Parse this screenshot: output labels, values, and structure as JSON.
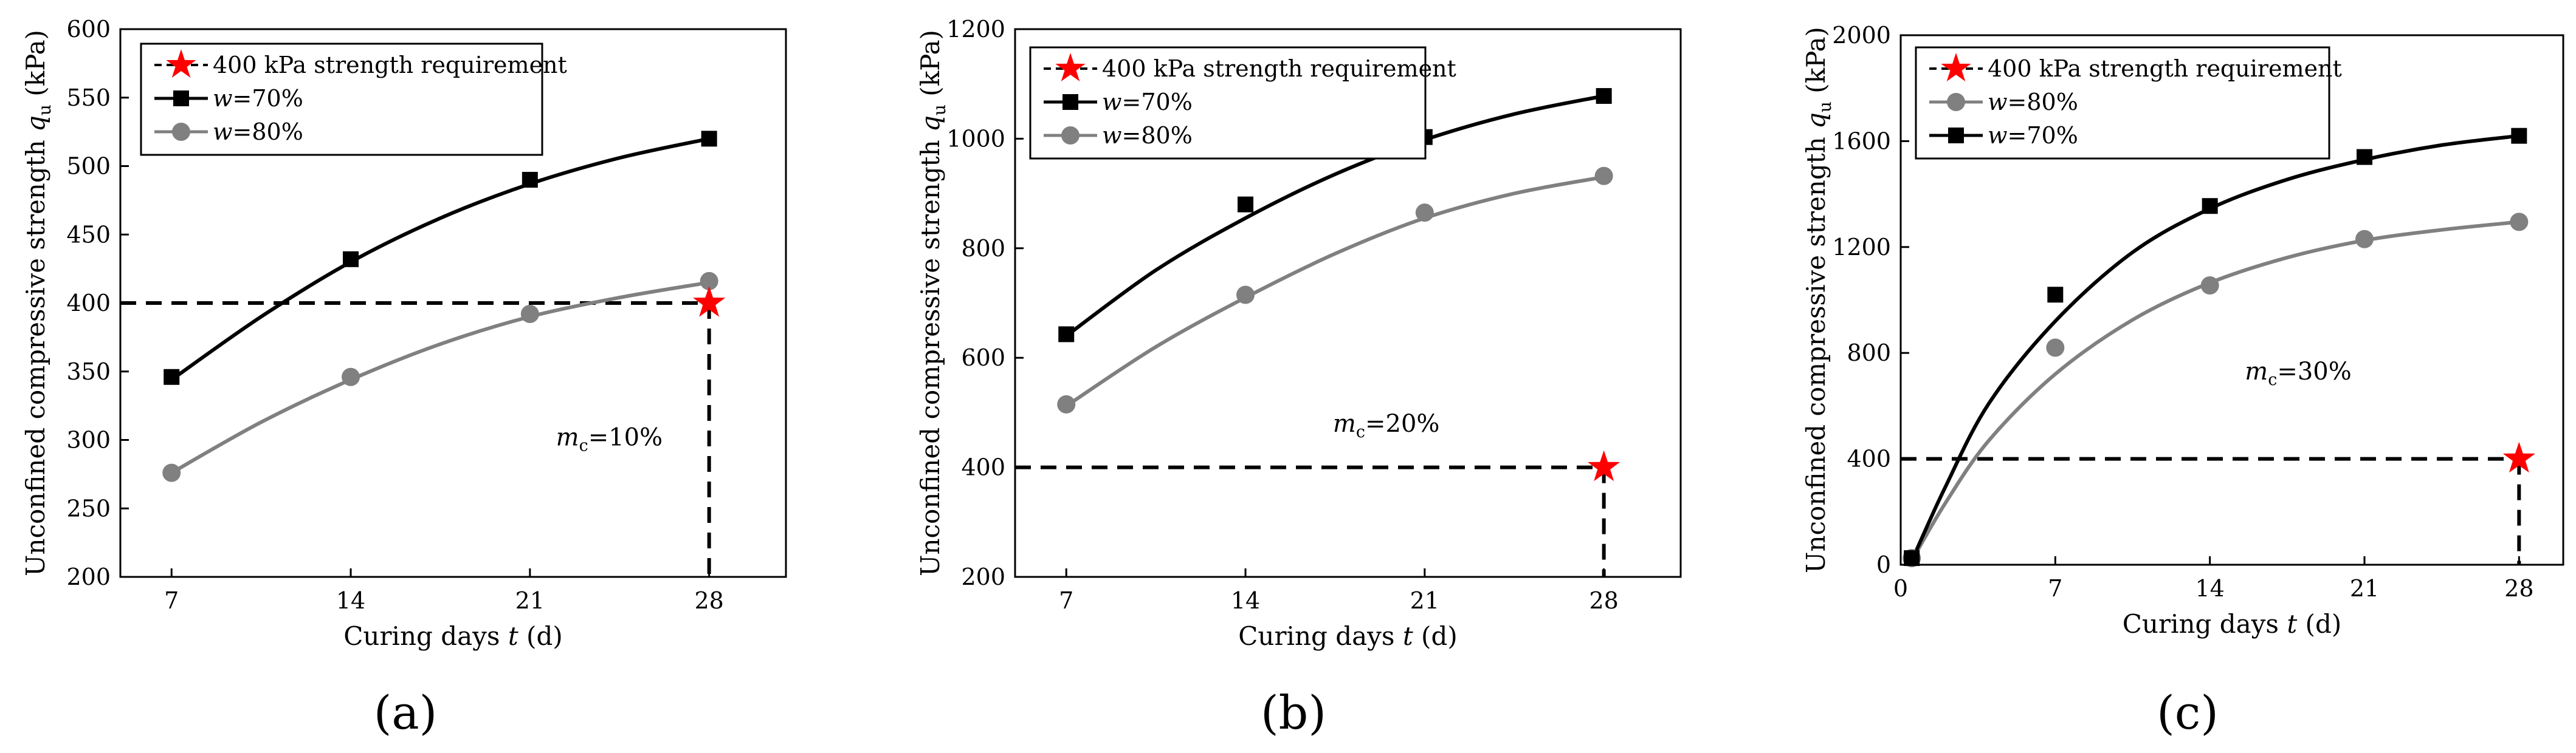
{
  "figure": {
    "panels": [
      "(a)",
      "(b)",
      "(c)"
    ]
  },
  "colors": {
    "w70": "#000000",
    "w80": "#808080",
    "requirement_star": "#ff0000",
    "dashed_line": "#000000",
    "axes": "#000000"
  },
  "chart_data": [
    {
      "type": "line",
      "panel_label": "(a)",
      "xlabel_prefix": "Curing days ",
      "xlabel_var": "t",
      "xlabel_suffix": " (d)",
      "ylabel_prefix": "Unconfined compressive strength ",
      "ylabel_var": "q",
      "ylabel_sub": "u",
      "ylabel_suffix": " (kPa)",
      "xlim": [
        5,
        31
      ],
      "ylim": [
        200,
        600
      ],
      "xticks": [
        7,
        14,
        21,
        28
      ],
      "yticks": [
        200,
        250,
        300,
        350,
        400,
        450,
        500,
        550,
        600
      ],
      "annotation": {
        "var": "m",
        "sub": "c",
        "text": "=10%",
        "x": 24.1,
        "y": 296
      },
      "threshold": {
        "label": "400 kPa strength requirement",
        "y": 400,
        "x": 28
      },
      "legend_position": "top-left",
      "series": [
        {
          "name_var": "w",
          "name_rest": "=70%",
          "marker": "square",
          "color_key": "w70",
          "x": [
            7,
            14,
            21,
            28
          ],
          "y": [
            346,
            432,
            490,
            520
          ],
          "fit_x": [
            7,
            10.5,
            14,
            17.5,
            21,
            24.5,
            28
          ],
          "fit_y": [
            344,
            390,
            430,
            462,
            487,
            506,
            520
          ]
        },
        {
          "name_var": "w",
          "name_rest": "=80%",
          "marker": "circle",
          "color_key": "w80",
          "x": [
            7,
            14,
            21,
            28
          ],
          "y": [
            276,
            346,
            392,
            416
          ],
          "fit_x": [
            7,
            10.5,
            14,
            17.5,
            21,
            24.5,
            28
          ],
          "fit_y": [
            276,
            313,
            344,
            370,
            390,
            404,
            415
          ]
        }
      ]
    },
    {
      "type": "line",
      "panel_label": "(b)",
      "xlabel_prefix": "Curing days ",
      "xlabel_var": "t",
      "xlabel_suffix": " (d)",
      "ylabel_prefix": "Unconfined compressive strength ",
      "ylabel_var": "q",
      "ylabel_sub": "u",
      "ylabel_suffix": " (kPa)",
      "xlim": [
        5,
        31
      ],
      "ylim": [
        200,
        1200
      ],
      "xticks": [
        7,
        14,
        21,
        28
      ],
      "yticks": [
        200,
        400,
        600,
        800,
        1000,
        1200
      ],
      "annotation": {
        "var": "m",
        "sub": "c",
        "text": "=20%",
        "x": 19.5,
        "y": 465
      },
      "threshold": {
        "label": "400 kPa strength requirement",
        "y": 400,
        "x": 28
      },
      "legend_position": "top-left",
      "series": [
        {
          "name_var": "w",
          "name_rest": "=70%",
          "marker": "square",
          "color_key": "w70",
          "x": [
            7,
            14,
            21,
            28
          ],
          "y": [
            643,
            880,
            1003,
            1078
          ],
          "fit_x": [
            7,
            10.5,
            14,
            17.5,
            21,
            24.5,
            28
          ],
          "fit_y": [
            640,
            760,
            855,
            935,
            998,
            1045,
            1078
          ]
        },
        {
          "name_var": "w",
          "name_rest": "=80%",
          "marker": "circle",
          "color_key": "w80",
          "x": [
            7,
            14,
            21,
            28
          ],
          "y": [
            515,
            715,
            865,
            932
          ],
          "fit_x": [
            7,
            10.5,
            14,
            17.5,
            21,
            24.5,
            28
          ],
          "fit_y": [
            512,
            620,
            710,
            790,
            855,
            900,
            930
          ]
        }
      ]
    },
    {
      "type": "line",
      "panel_label": "(c)",
      "xlabel_prefix": "Curing days ",
      "xlabel_var": "t",
      "xlabel_suffix": " (d)",
      "ylabel_prefix": "Unconfined compressive strength ",
      "ylabel_var": "q",
      "ylabel_sub": "u",
      "ylabel_suffix": " (kPa)",
      "xlim": [
        0,
        30
      ],
      "ylim": [
        0,
        2000
      ],
      "xticks": [
        0,
        7,
        14,
        21,
        28
      ],
      "yticks": [
        0,
        400,
        800,
        1200,
        1600,
        2000
      ],
      "annotation": {
        "var": "m",
        "sub": "c",
        "text": "=30%",
        "x": 18,
        "y": 700
      },
      "threshold": {
        "label": "400 kPa strength requirement",
        "y": 400,
        "x": 28
      },
      "legend_position": "top-left",
      "series": [
        {
          "name_var": "w",
          "name_rest": "=80%",
          "marker": "circle",
          "color_key": "w80",
          "x": [
            0.5,
            7,
            14,
            21,
            28
          ],
          "y": [
            25,
            820,
            1055,
            1230,
            1295
          ],
          "fit_x": [
            0.5,
            2,
            4,
            7,
            10.5,
            14,
            17.5,
            21,
            24.5,
            28
          ],
          "fit_y": [
            15,
            230,
            470,
            720,
            925,
            1065,
            1160,
            1225,
            1265,
            1295
          ]
        },
        {
          "name_var": "w",
          "name_rest": "=70%",
          "marker": "square",
          "color_key": "w70",
          "x": [
            0.5,
            7,
            14,
            21,
            28
          ],
          "y": [
            25,
            1020,
            1355,
            1540,
            1620
          ],
          "fit_x": [
            0.5,
            2,
            4,
            7,
            10.5,
            14,
            17.5,
            21,
            24.5,
            28
          ],
          "fit_y": [
            15,
            290,
            610,
            920,
            1180,
            1345,
            1455,
            1530,
            1585,
            1620
          ]
        }
      ]
    }
  ]
}
